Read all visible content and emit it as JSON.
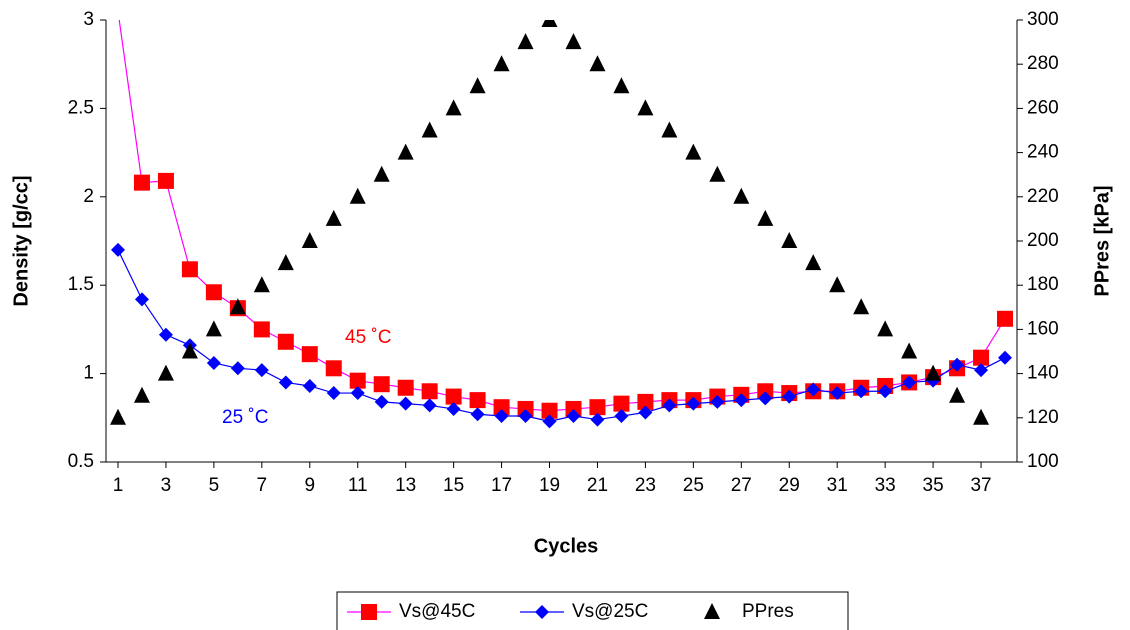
{
  "chart_data": {
    "type": "line",
    "x_label": "Cycles",
    "y_label": "Density [g/cc]",
    "y2_label": "PPres [kPa]",
    "x": [
      1,
      2,
      3,
      4,
      5,
      6,
      7,
      8,
      9,
      10,
      11,
      12,
      13,
      14,
      15,
      16,
      17,
      18,
      19,
      20,
      21,
      22,
      23,
      24,
      25,
      26,
      27,
      28,
      29,
      30,
      31,
      32,
      33,
      34,
      35,
      36,
      37,
      38
    ],
    "xlim": [
      0.5,
      38.5
    ],
    "xticks": [
      1,
      3,
      5,
      7,
      9,
      11,
      13,
      15,
      17,
      19,
      21,
      23,
      25,
      27,
      29,
      31,
      33,
      35,
      37
    ],
    "ylim": [
      0.5,
      3
    ],
    "yticks": [
      0.5,
      1,
      1.5,
      2,
      2.5,
      3
    ],
    "y2lim": [
      100,
      300
    ],
    "y2ticks": [
      100,
      120,
      140,
      160,
      180,
      200,
      220,
      240,
      260,
      280,
      300
    ],
    "series": [
      {
        "name": "Vs@45C",
        "color": "#ff00ff",
        "marker_color": "#ff0000",
        "marker": "square",
        "values": [
          3.05,
          2.08,
          2.09,
          1.59,
          1.46,
          1.37,
          1.25,
          1.18,
          1.11,
          1.03,
          0.96,
          0.94,
          0.92,
          0.9,
          0.87,
          0.85,
          0.81,
          0.8,
          0.79,
          0.8,
          0.81,
          0.83,
          0.84,
          0.85,
          0.85,
          0.87,
          0.88,
          0.9,
          0.89,
          0.9,
          0.9,
          0.92,
          0.93,
          0.95,
          0.98,
          1.03,
          1.09,
          1.31
        ]
      },
      {
        "name": "Vs@25C",
        "color": "#0000ff",
        "marker_color": "#0000ff",
        "marker": "diamond",
        "values": [
          1.7,
          1.42,
          1.22,
          1.16,
          1.06,
          1.03,
          1.02,
          0.95,
          0.93,
          0.89,
          0.89,
          0.84,
          0.83,
          0.82,
          0.8,
          0.77,
          0.76,
          0.76,
          0.73,
          0.76,
          0.74,
          0.76,
          0.78,
          0.82,
          0.83,
          0.84,
          0.85,
          0.86,
          0.87,
          0.91,
          0.89,
          0.9,
          0.9,
          0.95,
          0.96,
          1.05,
          1.02,
          1.09
        ]
      },
      {
        "name": "PPres",
        "color": null,
        "marker_color": "#000000",
        "marker": "triangle",
        "axis": "y2",
        "values": [
          120,
          130,
          140,
          150,
          160,
          170,
          180,
          190,
          200,
          210,
          220,
          230,
          240,
          250,
          260,
          270,
          280,
          290,
          300,
          290,
          280,
          270,
          260,
          250,
          240,
          230,
          220,
          210,
          200,
          190,
          180,
          170,
          160,
          150,
          140,
          130,
          120,
          null
        ]
      }
    ],
    "annotations": [
      {
        "text": "45 ˚C",
        "color": "#ff0000"
      },
      {
        "text": "25 ˚C",
        "color": "#0000ff"
      }
    ]
  }
}
